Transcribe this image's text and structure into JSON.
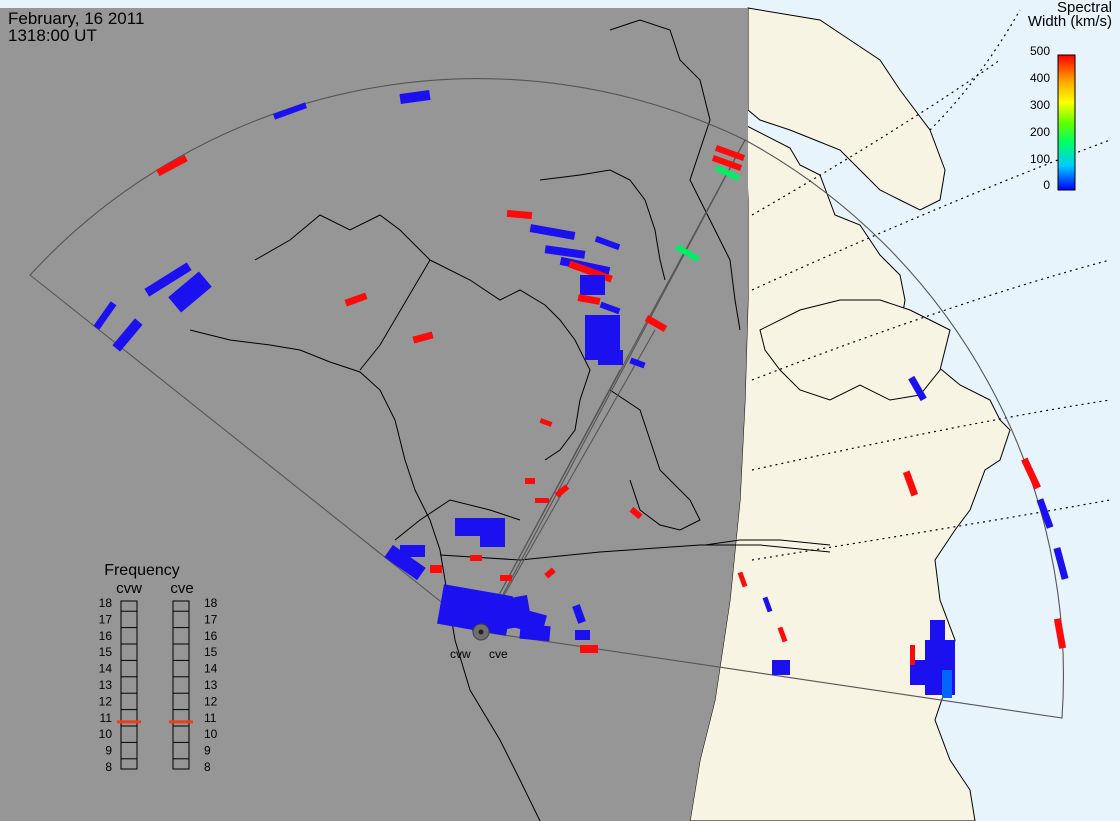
{
  "header": {
    "date": "February, 16 2011",
    "time": "1318:00 UT"
  },
  "colorbar": {
    "title_line1": "Spectral",
    "title_line2": "Width (km/s)",
    "ticks": [
      "500",
      "400",
      "300",
      "200",
      "100",
      "0"
    ],
    "colors": [
      "#0000ff",
      "#00ccff",
      "#00ff66",
      "#66ff00",
      "#ffff00",
      "#ffaa00",
      "#ff0000"
    ]
  },
  "frequency_panel": {
    "title": "Frequency",
    "left_label": "cvw",
    "right_label": "cve",
    "ticks": [
      "18",
      "17",
      "16",
      "15",
      "14",
      "13",
      "12",
      "11",
      "10",
      "9",
      "8"
    ],
    "cvw_mhz": 10.75,
    "cve_mhz": 10.75,
    "indicator_color": "#e8401c"
  },
  "radars": {
    "left_label": "cvw",
    "right_label": "cve"
  },
  "colors": {
    "night": "#969696",
    "day_land": "#f7f4e4",
    "day_ocean": "#e8f4fc",
    "backscatter_low": "#1a10f0",
    "backscatter_high": "#ff0a0a",
    "backscatter_mid": "#00ee66"
  }
}
